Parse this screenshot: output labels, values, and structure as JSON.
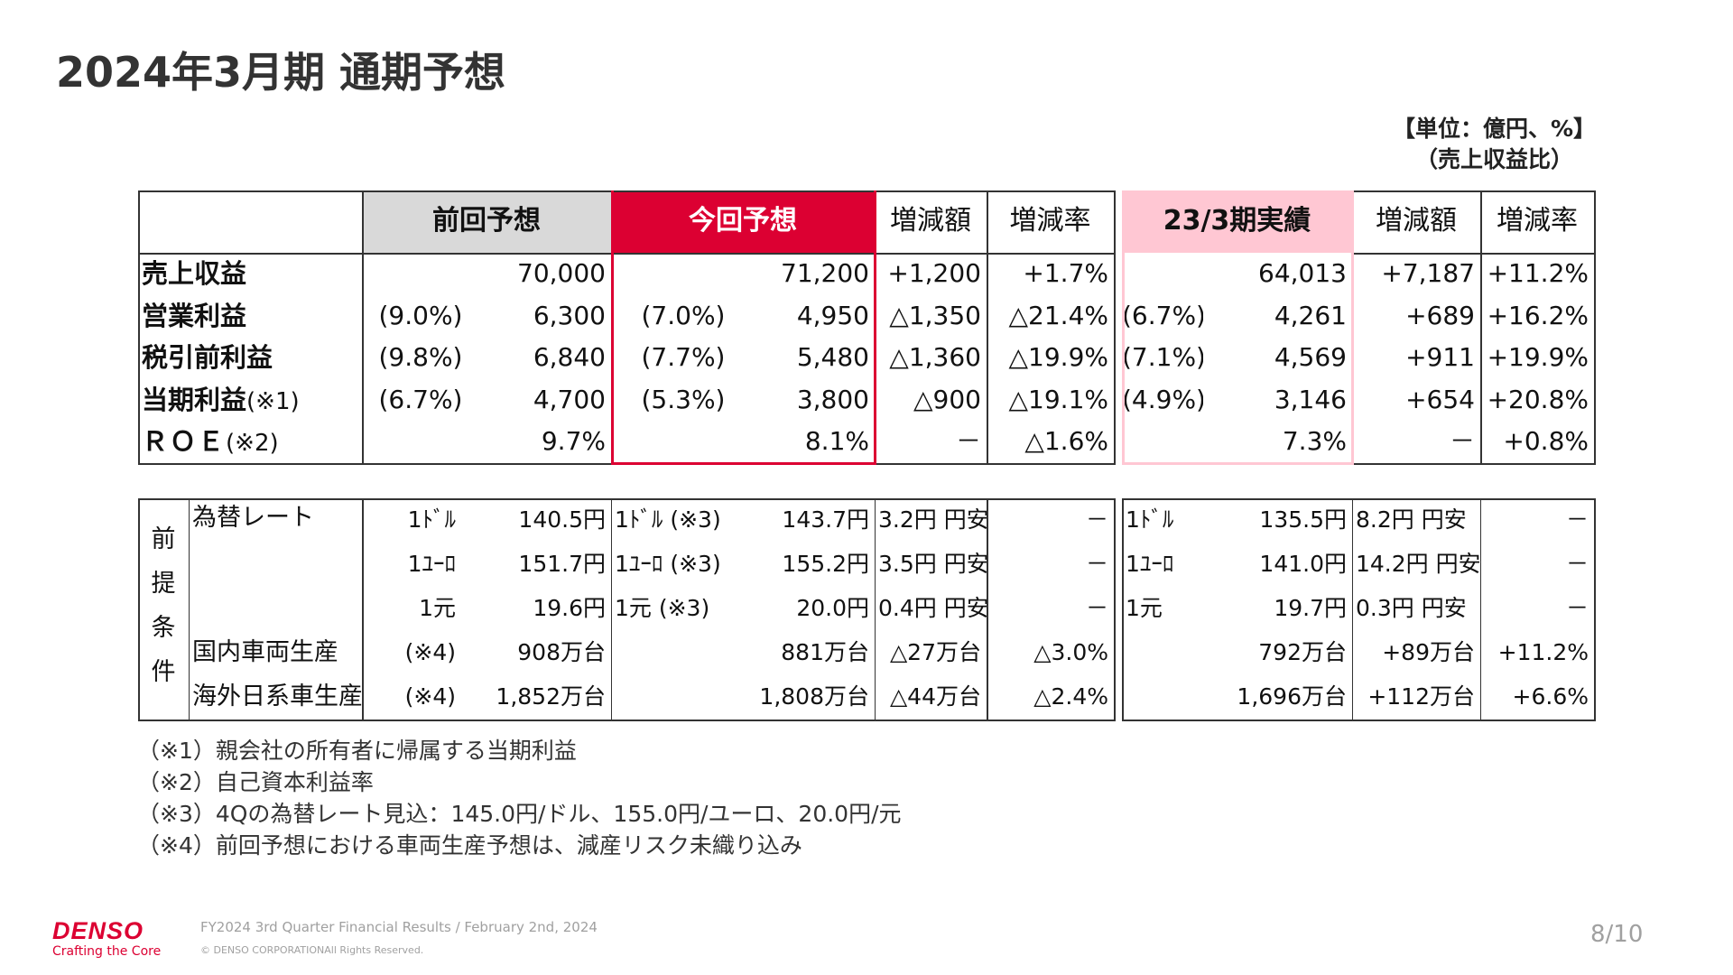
{
  "title": "2024年3月期 通期予想",
  "unit_note": {
    "line1": "【単位：億円、%】",
    "line2": "（売上収益比）"
  },
  "colors": {
    "red": "#dc0032",
    "grey": "#d9d9d9",
    "pink": "#ffc7d3",
    "border": "#333333"
  },
  "main_table": {
    "headers": {
      "prev": "前回予想",
      "curr": "今回予想",
      "diff_amt": "増減額",
      "diff_rate": "増減率",
      "actual": "23/3期実績",
      "diff_amt2": "増減額",
      "diff_rate2": "増減率"
    },
    "rows": [
      {
        "label": "売上収益",
        "label_note": "",
        "prev_ratio": "",
        "prev": "70,000",
        "curr_ratio": "",
        "curr": "71,200",
        "diff_amt": "+1,200",
        "diff_rate": "+1.7%",
        "act_ratio": "",
        "act": "64,013",
        "diff_amt2": "+7,187",
        "diff_rate2": "+11.2%"
      },
      {
        "label": "営業利益",
        "label_note": "",
        "prev_ratio": "(9.0%)",
        "prev": "6,300",
        "curr_ratio": "(7.0%)",
        "curr": "4,950",
        "diff_amt": "△1,350",
        "diff_rate": "△21.4%",
        "act_ratio": "(6.7%)",
        "act": "4,261",
        "diff_amt2": "+689",
        "diff_rate2": "+16.2%"
      },
      {
        "label": "税引前利益",
        "label_note": "",
        "prev_ratio": "(9.8%)",
        "prev": "6,840",
        "curr_ratio": "(7.7%)",
        "curr": "5,480",
        "diff_amt": "△1,360",
        "diff_rate": "△19.9%",
        "act_ratio": "(7.1%)",
        "act": "4,569",
        "diff_amt2": "+911",
        "diff_rate2": "+19.9%"
      },
      {
        "label": "当期利益",
        "label_note": "(※1)",
        "prev_ratio": "(6.7%)",
        "prev": "4,700",
        "curr_ratio": "(5.3%)",
        "curr": "3,800",
        "diff_amt": "△900",
        "diff_rate": "△19.1%",
        "act_ratio": "(4.9%)",
        "act": "3,146",
        "diff_amt2": "+654",
        "diff_rate2": "+20.8%"
      },
      {
        "label": "ＲＯＥ",
        "label_note": "(※2)",
        "prev_ratio": "",
        "prev": "9.7%",
        "curr_ratio": "",
        "curr": "8.1%",
        "diff_amt": "－",
        "diff_rate": "△1.6%",
        "act_ratio": "",
        "act": "7.3%",
        "diff_amt2": "－",
        "diff_rate2": "+0.8%"
      }
    ]
  },
  "premise_table": {
    "vertical_label": [
      "前",
      "提",
      "条",
      "件"
    ],
    "rows": [
      {
        "label": "為替レート",
        "prev_unit": "1ﾄﾞﾙ",
        "prev": "140.5円",
        "curr_unit": "1ﾄﾞﾙ (※3)",
        "curr": "143.7円",
        "diff_amt": "3.2円 円安",
        "diff_rate": "－",
        "act_unit": "1ﾄﾞﾙ",
        "act": "135.5円",
        "diff_amt2": "8.2円 円安",
        "diff_rate2": "－"
      },
      {
        "label": "",
        "prev_unit": "1ﾕｰﾛ",
        "prev": "151.7円",
        "curr_unit": "1ﾕｰﾛ (※3)",
        "curr": "155.2円",
        "diff_amt": "3.5円 円安",
        "diff_rate": "－",
        "act_unit": "1ﾕｰﾛ",
        "act": "141.0円",
        "diff_amt2": "14.2円 円安",
        "diff_rate2": "－"
      },
      {
        "label": "",
        "prev_unit": "1元",
        "prev": "19.6円",
        "curr_unit": "1元 (※3)",
        "curr": "20.0円",
        "diff_amt": "0.4円 円安",
        "diff_rate": "－",
        "act_unit": "1元",
        "act": "19.7円",
        "diff_amt2": "0.3円 円安",
        "diff_rate2": "－"
      },
      {
        "label": "国内車両生産",
        "prev_unit": "(※4)",
        "prev": "908万台",
        "curr_unit": "",
        "curr": "881万台",
        "diff_amt": "△27万台",
        "diff_rate": "△3.0%",
        "act_unit": "",
        "act": "792万台",
        "diff_amt2": "+89万台",
        "diff_rate2": "+11.2%"
      },
      {
        "label": "海外日系車生産",
        "prev_unit": "(※4)",
        "prev": "1,852万台",
        "curr_unit": "",
        "curr": "1,808万台",
        "diff_amt": "△44万台",
        "diff_rate": "△2.4%",
        "act_unit": "",
        "act": "1,696万台",
        "diff_amt2": "+112万台",
        "diff_rate2": "+6.6%"
      }
    ]
  },
  "footnotes": [
    "（※1）親会社の所有者に帰属する当期利益",
    "（※2）自己資本利益率",
    "（※3）4Qの為替レート見込：145.0円/ドル、155.0円/ユーロ、20.0円/元",
    "（※4）前回予想における車両生産予想は、減産リスク未織り込み"
  ],
  "footer": {
    "logo": "DENSO",
    "tagline": "Crafting the Core",
    "presentation": "FY2024 3rd Quarter Financial Results / February 2nd, 2024",
    "copyright": "© DENSO CORPORATIONAll Rights Reserved.",
    "page": "8/10"
  }
}
